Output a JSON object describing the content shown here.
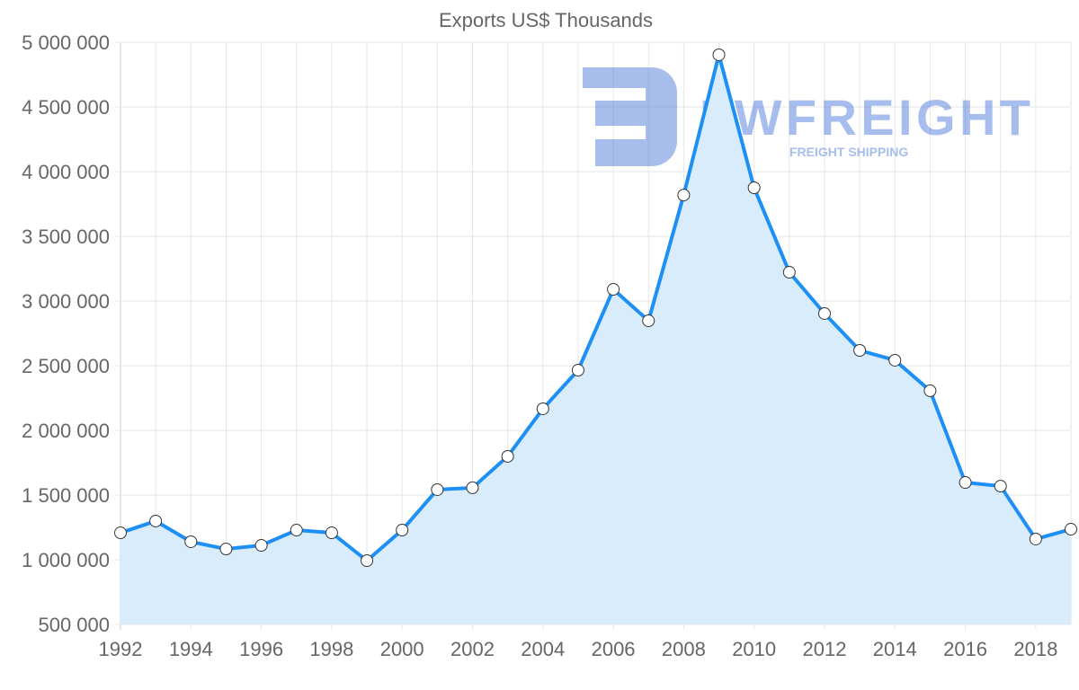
{
  "chart_data": {
    "type": "area",
    "title": "Exports US$ Thousands",
    "xlabel": "",
    "ylabel": "",
    "x": [
      1992,
      1993,
      1994,
      1995,
      1996,
      1997,
      1998,
      1999,
      2000,
      2001,
      2002,
      2003,
      2004,
      2005,
      2006,
      2007,
      2008,
      2009,
      2010,
      2011,
      2012,
      2013,
      2014,
      2015,
      2016,
      2017,
      2018,
      2019
    ],
    "series": [
      {
        "name": "Exports US$ Thousands",
        "color": "#1e90f5",
        "fill": "#d9ecfc",
        "values": [
          1208000,
          1299000,
          1139000,
          1083000,
          1111000,
          1229000,
          1208000,
          993000,
          1229000,
          1542000,
          1556000,
          1799000,
          2167000,
          2465000,
          3090000,
          2847000,
          3819000,
          4903000,
          3875000,
          3222000,
          2903000,
          2618000,
          2542000,
          2306000,
          1597000,
          1569000,
          1160000,
          1236000
        ]
      }
    ],
    "xlim": [
      1992,
      2019
    ],
    "ylim": [
      500000,
      5000000
    ],
    "x_ticks": [
      "1992",
      "1994",
      "1996",
      "1998",
      "2000",
      "2002",
      "2004",
      "2006",
      "2008",
      "2010",
      "2012",
      "2014",
      "2016",
      "2018"
    ],
    "y_ticks": [
      "500 000",
      "1 000 000",
      "1 500 000",
      "2 000 000",
      "2 500 000",
      "3 000 000",
      "3 500 000",
      "4 000 000",
      "4 500 000",
      "5 000 000"
    ],
    "grid": true,
    "legend": "none"
  },
  "watermark": {
    "brand": "FWFREIGHT",
    "tagline": "FREIGHT SHIPPING"
  }
}
